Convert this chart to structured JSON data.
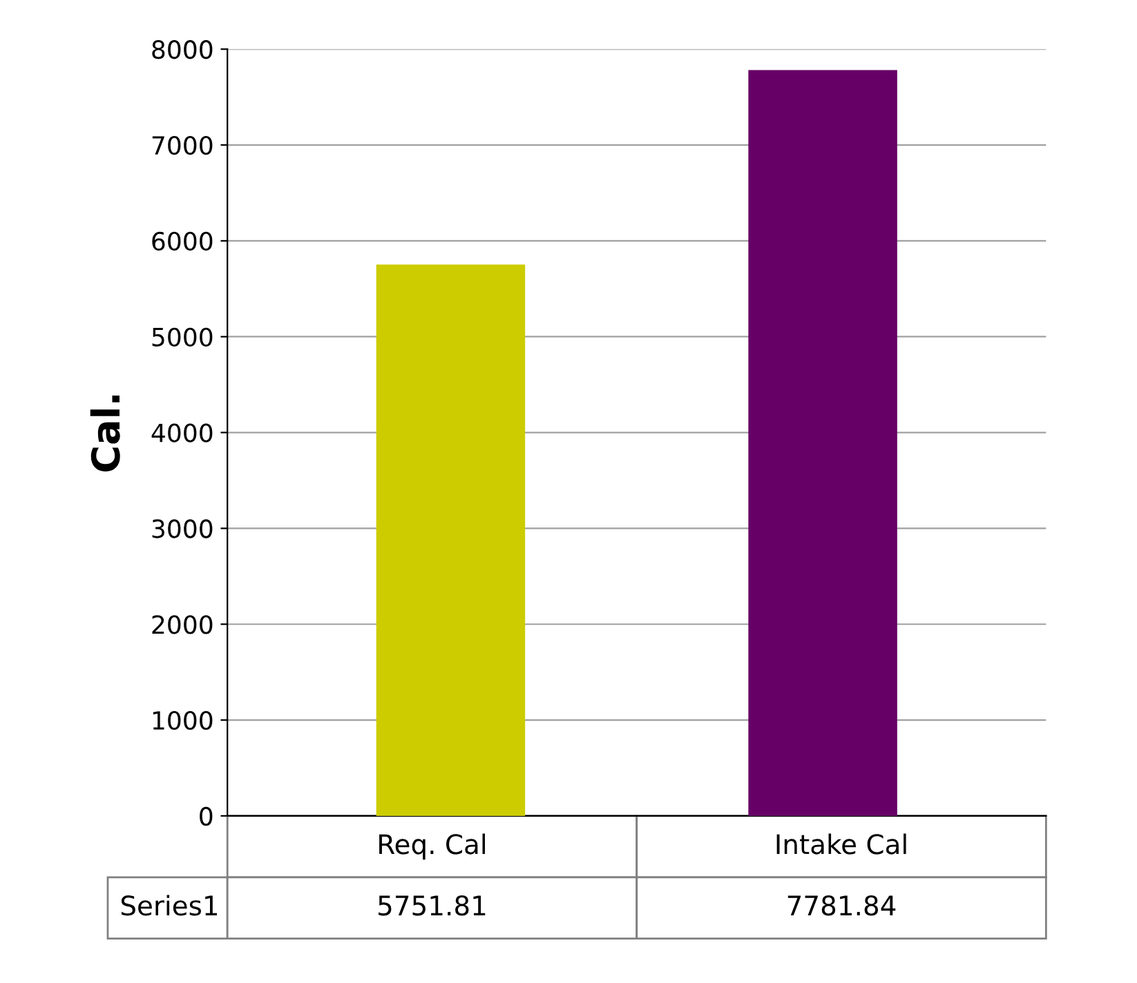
{
  "chart_data": {
    "type": "bar",
    "ylabel": "Cal.",
    "categories": [
      "Req. Cal",
      "Intake Cal"
    ],
    "series": [
      {
        "name": "Series1",
        "values": [
          5751.81,
          7781.84
        ]
      }
    ],
    "colors": [
      "#cccc00",
      "#660066"
    ],
    "ylim": [
      0,
      8000
    ],
    "yticks": [
      0,
      1000,
      2000,
      3000,
      4000,
      5000,
      6000,
      7000,
      8000
    ],
    "grid": "y",
    "data_labels": true
  }
}
